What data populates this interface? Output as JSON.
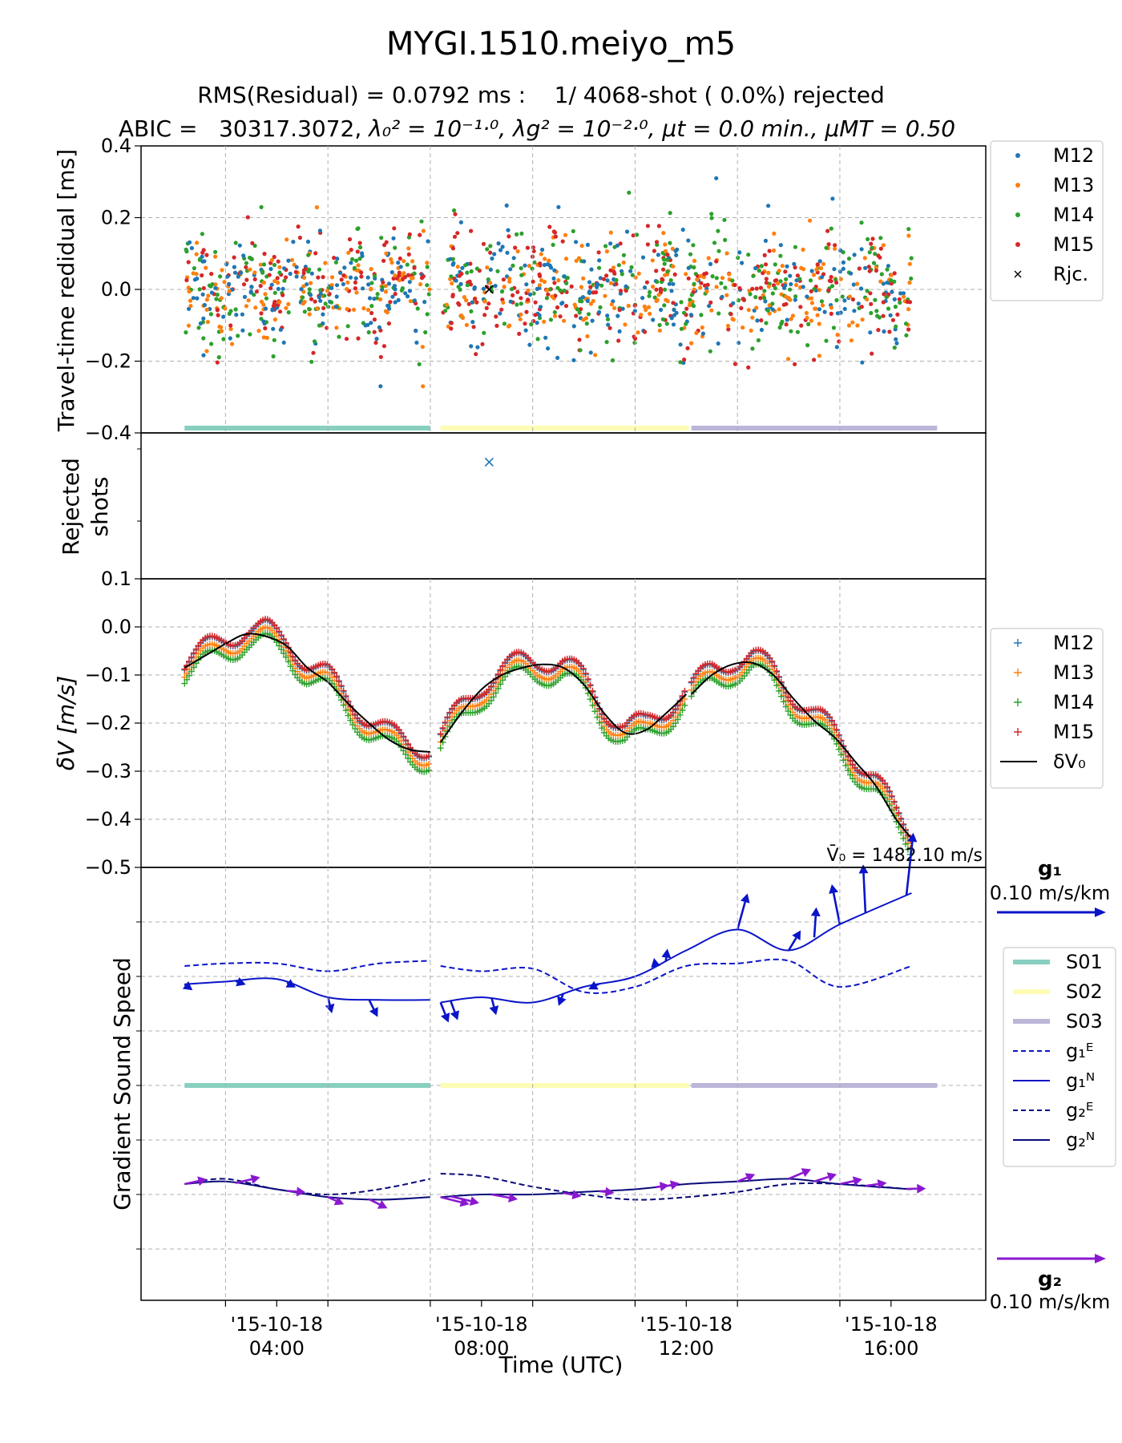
{
  "figure": {
    "title": "MYGI.1510.meiyo_m5",
    "subtitle_rms": "RMS(Residual) = 0.0792 ms :    1/ 4068-shot ( 0.0%) rejected",
    "subtitle_abic": {
      "abic": "ABIC =   30317.3072,",
      "l0": "λ₀² = 10⁻¹·⁰,",
      "lg": "λg² = 10⁻²·⁰,",
      "mut": "μt = 0.0 min.,",
      "mumt": "μMT = 0.50"
    },
    "xlabel": "Time (UTC)",
    "xticks": [
      {
        "l1": "'15-10-18",
        "l2": "04:00",
        "t": 4
      },
      {
        "l1": "'15-10-18",
        "l2": "08:00",
        "t": 8
      },
      {
        "l1": "'15-10-18",
        "l2": "12:00",
        "t": 12
      },
      {
        "l1": "'15-10-18",
        "l2": "16:00",
        "t": 16
      }
    ],
    "xlim": [
      1.35,
      17.85
    ]
  },
  "colors": {
    "M12": "#1f77b4",
    "M13": "#ff7f0e",
    "M14": "#2ca02c",
    "M15": "#d62728",
    "S01": "#88cfc0",
    "S02": "#fdfcb4",
    "S03": "#bcb6d8",
    "g1": "#0a14c8",
    "g2": "#8a18d0",
    "line": "#000000"
  },
  "chart_data": [
    {
      "type": "scatter",
      "ylabel": "Travel-time redidual [ms]",
      "ylim": [
        -0.4,
        0.4
      ],
      "yticks": [
        "0.4",
        "0.2",
        "0.0",
        "−0.2",
        "−0.4"
      ],
      "grid": true,
      "legend_position": "outside-right",
      "legend": [
        {
          "name": "M12",
          "marker": "•",
          "color": "#1f77b4"
        },
        {
          "name": "M13",
          "marker": "•",
          "color": "#ff7f0e"
        },
        {
          "name": "M14",
          "marker": "•",
          "color": "#2ca02c"
        },
        {
          "name": "M15",
          "marker": "•",
          "color": "#d62728"
        },
        {
          "name": "Rjc.",
          "marker": "×",
          "color": "#000000"
        }
      ],
      "time_range": [
        2.2,
        16.4
      ],
      "residual_spread_ms": 0.08,
      "rejected": [
        {
          "t": 8.15,
          "v": 0.0
        }
      ],
      "session_bars": [
        {
          "name": "S01",
          "x0": 2.2,
          "x1": 7.0
        },
        {
          "name": "S02",
          "x0": 7.2,
          "x1": 12.05
        },
        {
          "name": "S03",
          "x0": 12.1,
          "x1": 16.9
        }
      ]
    },
    {
      "type": "scatter",
      "ylabel": "Rejected\nshots",
      "ylim": [
        0,
        1
      ],
      "yticks": [],
      "points": [
        {
          "t": 8.15,
          "y": 0.8,
          "color": "#1f77b4",
          "marker": "x"
        }
      ]
    },
    {
      "type": "line",
      "ylabel": "δV [m/s]",
      "ylim": [
        -0.5,
        0.1
      ],
      "yticks": [
        "0.1",
        "0.0",
        "−0.1",
        "−0.2",
        "−0.3",
        "−0.4",
        "−0.5"
      ],
      "grid": true,
      "annotation": "V̄₀ =  1482.10 m/s",
      "legend_position": "outside-right",
      "legend": [
        {
          "name": "M12",
          "marker": "+",
          "color": "#1f77b4"
        },
        {
          "name": "M13",
          "marker": "+",
          "color": "#ff7f0e"
        },
        {
          "name": "M14",
          "marker": "+",
          "color": "#2ca02c"
        },
        {
          "name": "M15",
          "marker": "+",
          "color": "#d62728"
        },
        {
          "name": "δV₀",
          "marker": "line",
          "color": "#000000"
        }
      ],
      "segments": [
        {
          "session": "S01",
          "x": [
            2.2,
            2.6,
            3.0,
            3.4,
            3.8,
            4.2,
            4.6,
            5.0,
            5.4,
            5.8,
            6.2,
            6.6,
            7.0
          ],
          "y": [
            -0.085,
            -0.06,
            -0.035,
            -0.015,
            -0.02,
            -0.04,
            -0.085,
            -0.115,
            -0.16,
            -0.2,
            -0.235,
            -0.255,
            -0.26
          ]
        },
        {
          "session": "S02",
          "x": [
            7.2,
            7.6,
            8.0,
            8.4,
            8.8,
            9.2,
            9.6,
            10.0,
            10.4,
            10.8,
            11.2,
            11.6,
            12.0
          ],
          "y": [
            -0.24,
            -0.18,
            -0.13,
            -0.1,
            -0.085,
            -0.078,
            -0.085,
            -0.12,
            -0.18,
            -0.22,
            -0.215,
            -0.18,
            -0.14
          ]
        },
        {
          "session": "S03",
          "x": [
            12.1,
            12.5,
            12.9,
            13.3,
            13.7,
            14.1,
            14.5,
            14.9,
            15.3,
            15.7,
            16.1,
            16.4
          ],
          "y": [
            -0.14,
            -0.1,
            -0.078,
            -0.075,
            -0.1,
            -0.15,
            -0.195,
            -0.23,
            -0.28,
            -0.33,
            -0.4,
            -0.44
          ]
        }
      ],
      "series_offsets": {
        "M12": 0.01,
        "M13": -0.005,
        "M14": -0.018,
        "M15": 0.012
      }
    },
    {
      "type": "line",
      "ylabel": "Gradient Sound Speed",
      "grid": true,
      "legend_position": "outside-right",
      "g1_label": "g₁",
      "g1_scale": "0.10 m/s/km",
      "g2_label": "g₂",
      "g2_scale": "0.10 m/s/km",
      "legend": [
        {
          "name": "S01",
          "style": "band",
          "color": "#88cfc0"
        },
        {
          "name": "S02",
          "style": "band",
          "color": "#fdfcb4"
        },
        {
          "name": "S03",
          "style": "band",
          "color": "#bcb6d8"
        },
        {
          "name": "g₁ᴱ",
          "style": "dashed",
          "color": "#0a14c8"
        },
        {
          "name": "g₁ᴺ",
          "style": "solid",
          "color": "#0a14c8"
        },
        {
          "name": "g₂ᴱ",
          "style": "dashed",
          "color": "#0a0a7a"
        },
        {
          "name": "g₂ᴺ",
          "style": "solid",
          "color": "#0a0a7a"
        }
      ],
      "g1E": {
        "x": [
          2.2,
          3.0,
          4.0,
          5.0,
          6.0,
          7.0,
          7.2,
          8.0,
          9.0,
          10.0,
          11.0,
          12.0,
          13.0,
          14.0,
          15.0,
          16.4
        ],
        "y": [
          0.02,
          0.025,
          0.025,
          0.01,
          0.025,
          0.03,
          0.02,
          0.01,
          0.015,
          -0.03,
          -0.02,
          0.02,
          0.025,
          0.03,
          -0.02,
          0.02
        ]
      },
      "g1N": {
        "x": [
          2.2,
          3.0,
          4.0,
          5.0,
          6.0,
          7.0,
          7.2,
          8.0,
          9.0,
          10.0,
          11.0,
          12.0,
          13.0,
          14.0,
          15.0,
          16.4
        ],
        "y": [
          -0.015,
          -0.01,
          -0.005,
          -0.04,
          -0.045,
          -0.045,
          -0.05,
          -0.04,
          -0.05,
          -0.02,
          0.0,
          0.05,
          0.09,
          0.05,
          0.1,
          0.16
        ]
      },
      "g2E": {
        "x": [
          2.2,
          3.0,
          4.0,
          5.0,
          6.0,
          7.0,
          7.2,
          8.0,
          9.0,
          10.0,
          11.0,
          12.0,
          13.0,
          14.0,
          15.0,
          16.4
        ],
        "y": [
          0.02,
          0.03,
          0.01,
          0.0,
          0.01,
          0.03,
          0.04,
          0.035,
          0.015,
          0.0,
          -0.01,
          -0.005,
          0.005,
          0.02,
          0.02,
          0.01
        ]
      },
      "g2N": {
        "x": [
          2.2,
          3.0,
          4.0,
          5.0,
          6.0,
          7.0,
          7.2,
          8.0,
          9.0,
          10.0,
          11.0,
          12.0,
          13.0,
          14.0,
          15.0,
          16.4
        ],
        "y": [
          0.02,
          0.025,
          0.01,
          -0.005,
          -0.01,
          -0.005,
          -0.005,
          0.0,
          0.0,
          0.005,
          0.01,
          0.02,
          0.025,
          0.03,
          0.02,
          0.01
        ]
      }
    }
  ]
}
